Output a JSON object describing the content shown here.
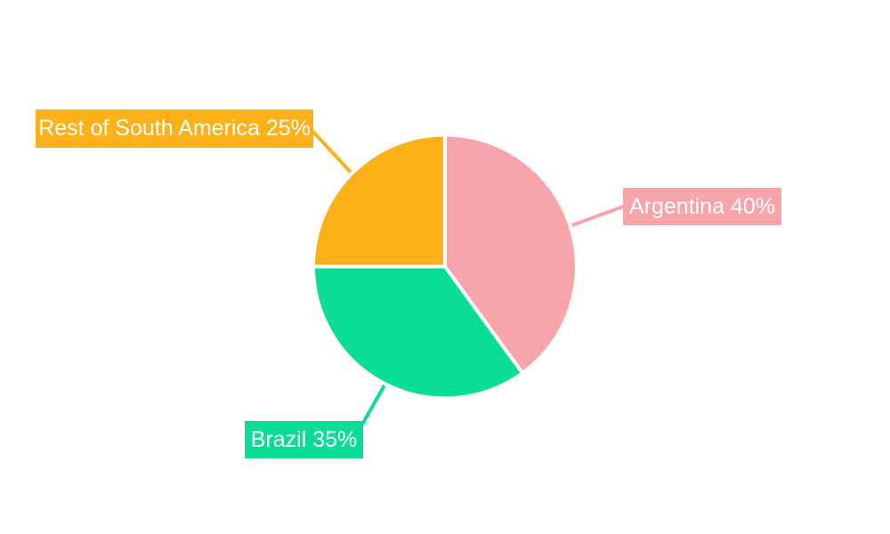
{
  "chart_data": {
    "type": "pie",
    "title": "",
    "categories": [
      "Argentina",
      "Brazil",
      "Rest of South America"
    ],
    "values": [
      40,
      35,
      25
    ],
    "unit": "%",
    "start_angle": "top",
    "direction": "clockwise",
    "labels_layout": "outside boxed labels with leader lines",
    "background_color": "#FFFFFF",
    "slice_border_color": "#FFFFFF",
    "label_text_color": "#FFFFFF",
    "slices": [
      {
        "name": "Argentina",
        "value": 40,
        "percent_label": "Argentina 40%",
        "color": "#F7A4AB"
      },
      {
        "name": "Brazil",
        "value": 35,
        "percent_label": "Brazil 35%",
        "color": "#0ADE94"
      },
      {
        "name": "Rest of South America",
        "value": 25,
        "percent_label": "Rest of South America 25%",
        "color": "#FCB118"
      }
    ]
  }
}
